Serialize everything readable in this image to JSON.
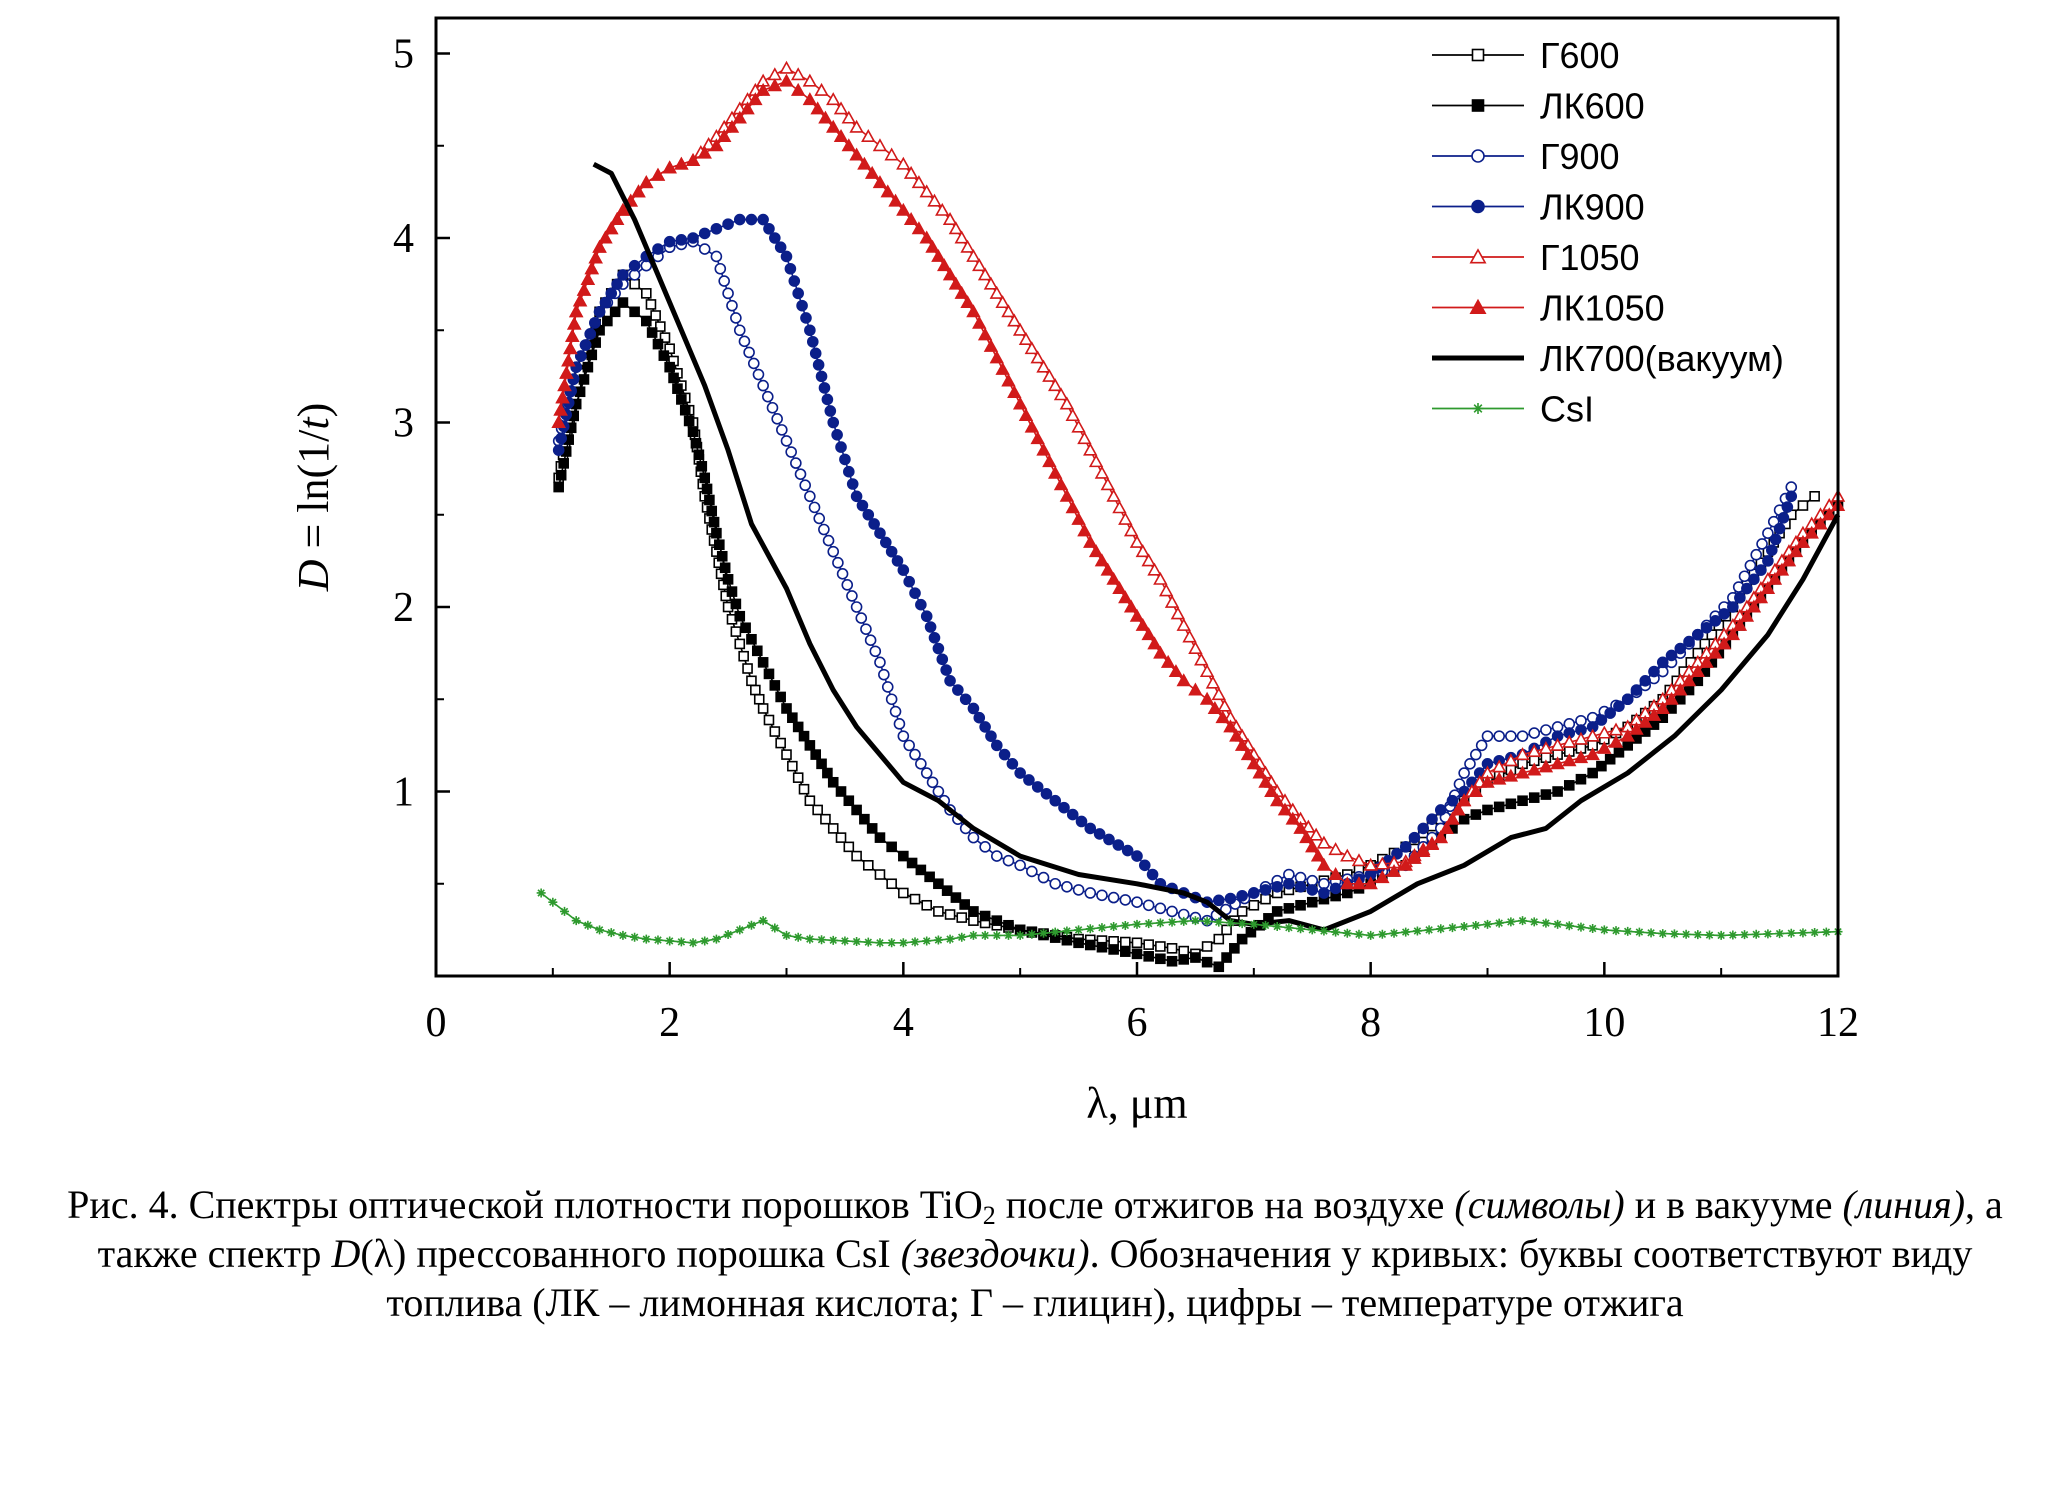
{
  "chart_data": {
    "type": "line",
    "xlabel": "λ, μm",
    "ylabel_parts": {
      "D": "D",
      "eq": " = ln(1/",
      "t": "t",
      "close": ")"
    },
    "xlim": [
      0,
      12
    ],
    "ylim": [
      0,
      5
    ],
    "x_ticks": [
      "0",
      "2",
      "4",
      "6",
      "8",
      "10",
      "12"
    ],
    "y_ticks": [
      "1",
      "2",
      "3",
      "4",
      "5"
    ],
    "grid": false,
    "legend_position": "top-right",
    "series": [
      {
        "name": "Г600",
        "color": "#000000",
        "marker": "open-square",
        "x": [
          1.05,
          1.2,
          1.4,
          1.6,
          1.8,
          2.0,
          2.2,
          2.3,
          2.4,
          2.5,
          2.6,
          2.7,
          2.8,
          3.0,
          3.2,
          3.4,
          3.6,
          3.8,
          4.0,
          4.3,
          4.6,
          5.0,
          5.5,
          6.0,
          6.3,
          6.5,
          6.7,
          6.9,
          7.2,
          7.5,
          7.8,
          8.0,
          8.3,
          8.6,
          8.8,
          9.0,
          9.3,
          9.6,
          9.9,
          10.2,
          10.5,
          10.8,
          11.1,
          11.4,
          11.6,
          11.8
        ],
        "y": [
          2.7,
          3.2,
          3.6,
          3.8,
          3.7,
          3.4,
          3.0,
          2.6,
          2.3,
          2.0,
          1.8,
          1.6,
          1.45,
          1.2,
          0.95,
          0.8,
          0.65,
          0.55,
          0.45,
          0.35,
          0.3,
          0.25,
          0.2,
          0.18,
          0.15,
          0.12,
          0.2,
          0.35,
          0.45,
          0.5,
          0.55,
          0.6,
          0.7,
          0.85,
          0.95,
          1.05,
          1.15,
          1.2,
          1.25,
          1.35,
          1.5,
          1.75,
          2.0,
          2.3,
          2.5,
          2.6
        ]
      },
      {
        "name": "ЛК600",
        "color": "#000000",
        "marker": "filled-square",
        "x": [
          1.05,
          1.2,
          1.4,
          1.6,
          1.8,
          2.0,
          2.2,
          2.3,
          2.4,
          2.5,
          2.6,
          2.8,
          3.0,
          3.2,
          3.4,
          3.6,
          3.8,
          4.0,
          4.3,
          4.6,
          5.0,
          5.5,
          6.0,
          6.3,
          6.5,
          6.7,
          6.9,
          7.2,
          7.5,
          7.8,
          8.0,
          8.3,
          8.6,
          8.8,
          9.0,
          9.3,
          9.6,
          9.9,
          10.2,
          10.5,
          10.8,
          11.1,
          11.4,
          11.7,
          12.0
        ],
        "y": [
          2.65,
          3.1,
          3.5,
          3.65,
          3.55,
          3.3,
          2.95,
          2.7,
          2.4,
          2.15,
          1.95,
          1.7,
          1.45,
          1.25,
          1.05,
          0.9,
          0.75,
          0.65,
          0.5,
          0.35,
          0.25,
          0.18,
          0.12,
          0.08,
          0.1,
          0.05,
          0.2,
          0.35,
          0.4,
          0.45,
          0.5,
          0.6,
          0.75,
          0.85,
          0.9,
          0.95,
          1.0,
          1.1,
          1.25,
          1.4,
          1.6,
          1.85,
          2.1,
          2.35,
          2.55
        ]
      },
      {
        "name": "Г900",
        "color": "#0b1f8a",
        "marker": "open-circle",
        "x": [
          1.05,
          1.2,
          1.4,
          1.6,
          1.8,
          2.0,
          2.2,
          2.4,
          2.6,
          2.8,
          3.0,
          3.2,
          3.4,
          3.6,
          3.8,
          4.0,
          4.2,
          4.4,
          4.6,
          4.8,
          5.0,
          5.3,
          5.6,
          6.0,
          6.3,
          6.6,
          7.0,
          7.3,
          7.6,
          8.0,
          8.3,
          8.6,
          8.8,
          9.0,
          9.3,
          9.6,
          9.9,
          10.2,
          10.5,
          10.8,
          11.1,
          11.4,
          11.6
        ],
        "y": [
          2.9,
          3.3,
          3.6,
          3.75,
          3.85,
          3.95,
          3.98,
          3.9,
          3.5,
          3.2,
          2.9,
          2.6,
          2.3,
          2.0,
          1.7,
          1.3,
          1.1,
          0.9,
          0.75,
          0.65,
          0.6,
          0.5,
          0.45,
          0.4,
          0.35,
          0.3,
          0.45,
          0.55,
          0.5,
          0.55,
          0.6,
          0.8,
          1.1,
          1.3,
          1.3,
          1.35,
          1.4,
          1.5,
          1.65,
          1.85,
          2.05,
          2.4,
          2.65
        ]
      },
      {
        "name": "ЛК900",
        "color": "#0b1f8a",
        "marker": "filled-circle",
        "x": [
          1.05,
          1.2,
          1.4,
          1.6,
          1.8,
          2.0,
          2.2,
          2.4,
          2.6,
          2.8,
          3.0,
          3.2,
          3.4,
          3.6,
          3.8,
          4.0,
          4.2,
          4.4,
          4.6,
          4.8,
          5.0,
          5.3,
          5.6,
          6.0,
          6.2,
          6.4,
          6.6,
          6.8,
          7.0,
          7.3,
          7.6,
          8.0,
          8.3,
          8.6,
          8.8,
          9.0,
          9.3,
          9.6,
          9.9,
          10.2,
          10.5,
          10.8,
          11.1,
          11.4,
          11.6
        ],
        "y": [
          2.85,
          3.3,
          3.6,
          3.8,
          3.9,
          3.98,
          4.0,
          4.05,
          4.1,
          4.1,
          3.9,
          3.5,
          3.0,
          2.6,
          2.4,
          2.2,
          1.95,
          1.6,
          1.45,
          1.25,
          1.1,
          0.95,
          0.8,
          0.65,
          0.5,
          0.45,
          0.4,
          0.42,
          0.45,
          0.5,
          0.45,
          0.55,
          0.7,
          0.9,
          1.0,
          1.15,
          1.2,
          1.3,
          1.35,
          1.5,
          1.7,
          1.85,
          2.0,
          2.25,
          2.6
        ]
      },
      {
        "name": "Г1050",
        "color": "#d11a1a",
        "marker": "open-triangle",
        "x": [
          1.05,
          1.2,
          1.4,
          1.6,
          1.8,
          2.0,
          2.2,
          2.4,
          2.6,
          2.8,
          3.0,
          3.2,
          3.4,
          3.6,
          3.8,
          4.0,
          4.2,
          4.4,
          4.6,
          4.8,
          5.0,
          5.2,
          5.4,
          5.6,
          5.8,
          6.0,
          6.2,
          6.4,
          6.6,
          6.8,
          7.0,
          7.2,
          7.4,
          7.6,
          7.8,
          8.0,
          8.3,
          8.6,
          8.8,
          9.0,
          9.3,
          9.6,
          9.9,
          10.2,
          10.5,
          10.8,
          11.1,
          11.4,
          11.7,
          12.0
        ],
        "y": [
          3.0,
          3.6,
          3.95,
          4.15,
          4.3,
          4.38,
          4.42,
          4.55,
          4.7,
          4.85,
          4.92,
          4.85,
          4.75,
          4.6,
          4.5,
          4.4,
          4.25,
          4.1,
          3.9,
          3.7,
          3.5,
          3.3,
          3.1,
          2.85,
          2.6,
          2.35,
          2.15,
          1.9,
          1.65,
          1.4,
          1.2,
          1.0,
          0.85,
          0.72,
          0.65,
          0.6,
          0.62,
          0.75,
          0.95,
          1.1,
          1.2,
          1.25,
          1.3,
          1.35,
          1.5,
          1.7,
          1.9,
          2.15,
          2.4,
          2.6
        ]
      },
      {
        "name": "ЛК1050",
        "color": "#d11a1a",
        "marker": "filled-triangle",
        "x": [
          1.05,
          1.2,
          1.4,
          1.6,
          1.8,
          2.0,
          2.2,
          2.4,
          2.6,
          2.8,
          3.0,
          3.2,
          3.4,
          3.6,
          3.8,
          4.0,
          4.2,
          4.4,
          4.6,
          4.8,
          5.0,
          5.2,
          5.4,
          5.6,
          5.8,
          6.0,
          6.2,
          6.4,
          6.6,
          6.8,
          7.0,
          7.2,
          7.4,
          7.6,
          7.8,
          8.0,
          8.3,
          8.6,
          8.8,
          9.0,
          9.3,
          9.6,
          9.9,
          10.2,
          10.5,
          10.8,
          11.1,
          11.4,
          11.7,
          12.0
        ],
        "y": [
          3.0,
          3.6,
          3.95,
          4.15,
          4.3,
          4.38,
          4.42,
          4.5,
          4.65,
          4.8,
          4.85,
          4.75,
          4.6,
          4.45,
          4.3,
          4.15,
          4.0,
          3.8,
          3.6,
          3.35,
          3.1,
          2.85,
          2.6,
          2.35,
          2.15,
          1.95,
          1.75,
          1.6,
          1.5,
          1.35,
          1.15,
          0.95,
          0.8,
          0.6,
          0.5,
          0.5,
          0.6,
          0.75,
          0.95,
          1.05,
          1.1,
          1.15,
          1.2,
          1.3,
          1.45,
          1.65,
          1.85,
          2.1,
          2.35,
          2.55
        ]
      },
      {
        "name": "ЛК700(вакуум)",
        "color": "#000000",
        "marker": "line",
        "x": [
          1.35,
          1.5,
          1.7,
          1.9,
          2.1,
          2.3,
          2.5,
          2.7,
          3.0,
          3.2,
          3.4,
          3.6,
          3.8,
          4.0,
          4.3,
          4.6,
          5.0,
          5.5,
          6.0,
          6.4,
          6.6,
          6.8,
          7.0,
          7.3,
          7.6,
          8.0,
          8.4,
          8.8,
          9.2,
          9.5,
          9.8,
          10.2,
          10.6,
          11.0,
          11.4,
          11.7,
          12.0
        ],
        "y": [
          4.4,
          4.35,
          4.1,
          3.8,
          3.5,
          3.2,
          2.85,
          2.45,
          2.1,
          1.8,
          1.55,
          1.35,
          1.2,
          1.05,
          0.95,
          0.8,
          0.65,
          0.55,
          0.5,
          0.45,
          0.4,
          0.3,
          0.28,
          0.3,
          0.25,
          0.35,
          0.5,
          0.6,
          0.75,
          0.8,
          0.95,
          1.1,
          1.3,
          1.55,
          1.85,
          2.15,
          2.5
        ]
      },
      {
        "name": "CsI",
        "color": "#2e9a2e",
        "marker": "star",
        "x": [
          0.9,
          1.0,
          1.1,
          1.2,
          1.4,
          1.6,
          1.8,
          2.0,
          2.2,
          2.4,
          2.6,
          2.8,
          3.0,
          3.2,
          3.5,
          3.8,
          4.0,
          4.2,
          4.4,
          4.6,
          4.8,
          5.0,
          5.5,
          6.0,
          6.5,
          7.0,
          7.5,
          8.0,
          8.5,
          9.0,
          9.3,
          9.6,
          10.0,
          10.5,
          11.0,
          11.5,
          12.0
        ],
        "y": [
          0.45,
          0.4,
          0.35,
          0.3,
          0.25,
          0.22,
          0.2,
          0.19,
          0.18,
          0.2,
          0.25,
          0.3,
          0.22,
          0.2,
          0.19,
          0.18,
          0.18,
          0.19,
          0.2,
          0.22,
          0.22,
          0.22,
          0.25,
          0.28,
          0.3,
          0.28,
          0.25,
          0.22,
          0.25,
          0.28,
          0.3,
          0.28,
          0.25,
          0.23,
          0.22,
          0.23,
          0.24
        ]
      }
    ]
  },
  "caption": {
    "p1": "Рис. 4. Спектры оптической плотности порошков TiO",
    "sub": "2",
    "p2": " после отжигов на воздухе ",
    "i1": "(символы)",
    "p3": " и в вакууме ",
    "i2": "(линия)",
    "p4": ", а также спектр ",
    "i3": "D",
    "p5": "(λ) прессованного порошка CsI ",
    "i4": "(звездочки)",
    "p6": ". Обозначения у кривых: буквы соответствуют виду топлива (ЛК – лимонная кислота; Г – глицин), цифры – температуре отжига"
  }
}
